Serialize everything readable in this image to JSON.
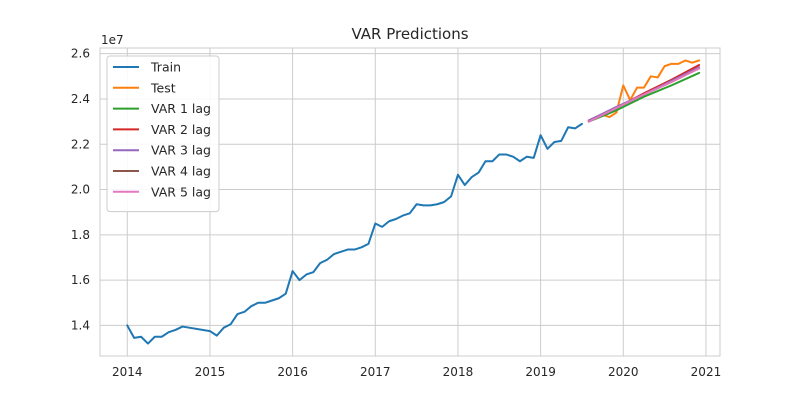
{
  "chart_data": {
    "type": "line",
    "title": "VAR Predictions",
    "xlabel": "",
    "ylabel": "",
    "y_offset_label": "1e7",
    "xlim": [
      2013.67,
      2021.17
    ],
    "ylim": [
      12.65,
      26.25
    ],
    "x_ticks": [
      2014,
      2015,
      2016,
      2017,
      2018,
      2019,
      2020,
      2021
    ],
    "x_tick_labels": [
      "2014",
      "2015",
      "2016",
      "2017",
      "2018",
      "2019",
      "2020",
      "2021"
    ],
    "y_ticks": [
      14,
      16,
      18,
      20,
      22,
      24,
      26
    ],
    "y_tick_labels": [
      "1.4",
      "1.6",
      "1.8",
      "2.0",
      "2.2",
      "2.4",
      "2.6"
    ],
    "y_scale_note": "values in units of 1e6 (axis shows x1e7)",
    "grid": true,
    "legend_position": "upper-left",
    "series": [
      {
        "name": "Train",
        "color": "#1f77b4",
        "x": [
          2014.0,
          2014.083,
          2014.167,
          2014.25,
          2014.333,
          2014.417,
          2014.5,
          2014.583,
          2014.667,
          2015.0,
          2015.083,
          2015.167,
          2015.25,
          2015.333,
          2015.417,
          2015.5,
          2015.583,
          2015.667,
          2015.75,
          2015.833,
          2015.917,
          2016.0,
          2016.083,
          2016.167,
          2016.25,
          2016.333,
          2016.417,
          2016.5,
          2016.583,
          2016.667,
          2016.75,
          2016.833,
          2016.917,
          2017.0,
          2017.083,
          2017.167,
          2017.25,
          2017.333,
          2017.417,
          2017.5,
          2017.583,
          2017.667,
          2017.75,
          2017.833,
          2017.917,
          2018.0,
          2018.083,
          2018.167,
          2018.25,
          2018.333,
          2018.417,
          2018.5,
          2018.583,
          2018.667,
          2018.75,
          2018.833,
          2018.917,
          2019.0,
          2019.083,
          2019.167,
          2019.25,
          2019.333,
          2019.417,
          2019.5
        ],
        "values": [
          14.0,
          13.45,
          13.5,
          13.2,
          13.5,
          13.5,
          13.7,
          13.8,
          13.95,
          13.75,
          13.55,
          13.9,
          14.05,
          14.5,
          14.6,
          14.85,
          15.0,
          15.0,
          15.1,
          15.2,
          15.4,
          16.4,
          16.0,
          16.25,
          16.35,
          16.75,
          16.9,
          17.15,
          17.25,
          17.35,
          17.35,
          17.45,
          17.6,
          18.5,
          18.35,
          18.6,
          18.7,
          18.85,
          18.95,
          19.35,
          19.3,
          19.3,
          19.35,
          19.45,
          19.7,
          20.65,
          20.2,
          20.55,
          20.75,
          21.25,
          21.25,
          21.55,
          21.55,
          21.45,
          21.25,
          21.45,
          21.4,
          22.4,
          21.8,
          22.1,
          22.15,
          22.75,
          22.7,
          22.9
        ]
      },
      {
        "name": "Test",
        "color": "#ff7f0e",
        "x": [
          2019.583,
          2019.667,
          2019.75,
          2019.833,
          2019.917,
          2020.0,
          2020.083,
          2020.167,
          2020.25,
          2020.333,
          2020.417,
          2020.5,
          2020.583,
          2020.667,
          2020.75,
          2020.833,
          2020.917
        ],
        "values": [
          23.0,
          23.2,
          23.3,
          23.2,
          23.4,
          24.6,
          23.95,
          24.5,
          24.5,
          25.0,
          24.95,
          25.45,
          25.55,
          25.55,
          25.7,
          25.6,
          25.7
        ]
      },
      {
        "name": "VAR 1 lag",
        "color": "#2ca02c",
        "x": [
          2019.583,
          2019.917,
          2020.25,
          2020.583,
          2020.917
        ],
        "values": [
          23.0,
          23.5,
          24.1,
          24.6,
          25.15
        ]
      },
      {
        "name": "VAR 2 lag",
        "color": "#d62728",
        "x": [
          2019.583,
          2019.917,
          2020.25,
          2020.583,
          2020.917
        ],
        "values": [
          23.05,
          23.6,
          24.25,
          24.85,
          25.5
        ]
      },
      {
        "name": "VAR 3 lag",
        "color": "#9467bd",
        "x": [
          2019.583,
          2019.917,
          2020.25,
          2020.583,
          2020.917
        ],
        "values": [
          23.05,
          23.65,
          24.2,
          24.8,
          25.4
        ]
      },
      {
        "name": "VAR 4 lag",
        "color": "#8c564b",
        "x": [
          2019.583,
          2019.917,
          2020.25,
          2020.583,
          2020.917
        ],
        "values": [
          23.0,
          23.6,
          24.2,
          24.75,
          25.35
        ]
      },
      {
        "name": "VAR 5 lag",
        "color": "#e377c2",
        "x": [
          2019.583,
          2019.917,
          2020.25,
          2020.583,
          2020.917
        ],
        "values": [
          23.0,
          23.6,
          24.2,
          24.75,
          25.35
        ]
      }
    ]
  }
}
